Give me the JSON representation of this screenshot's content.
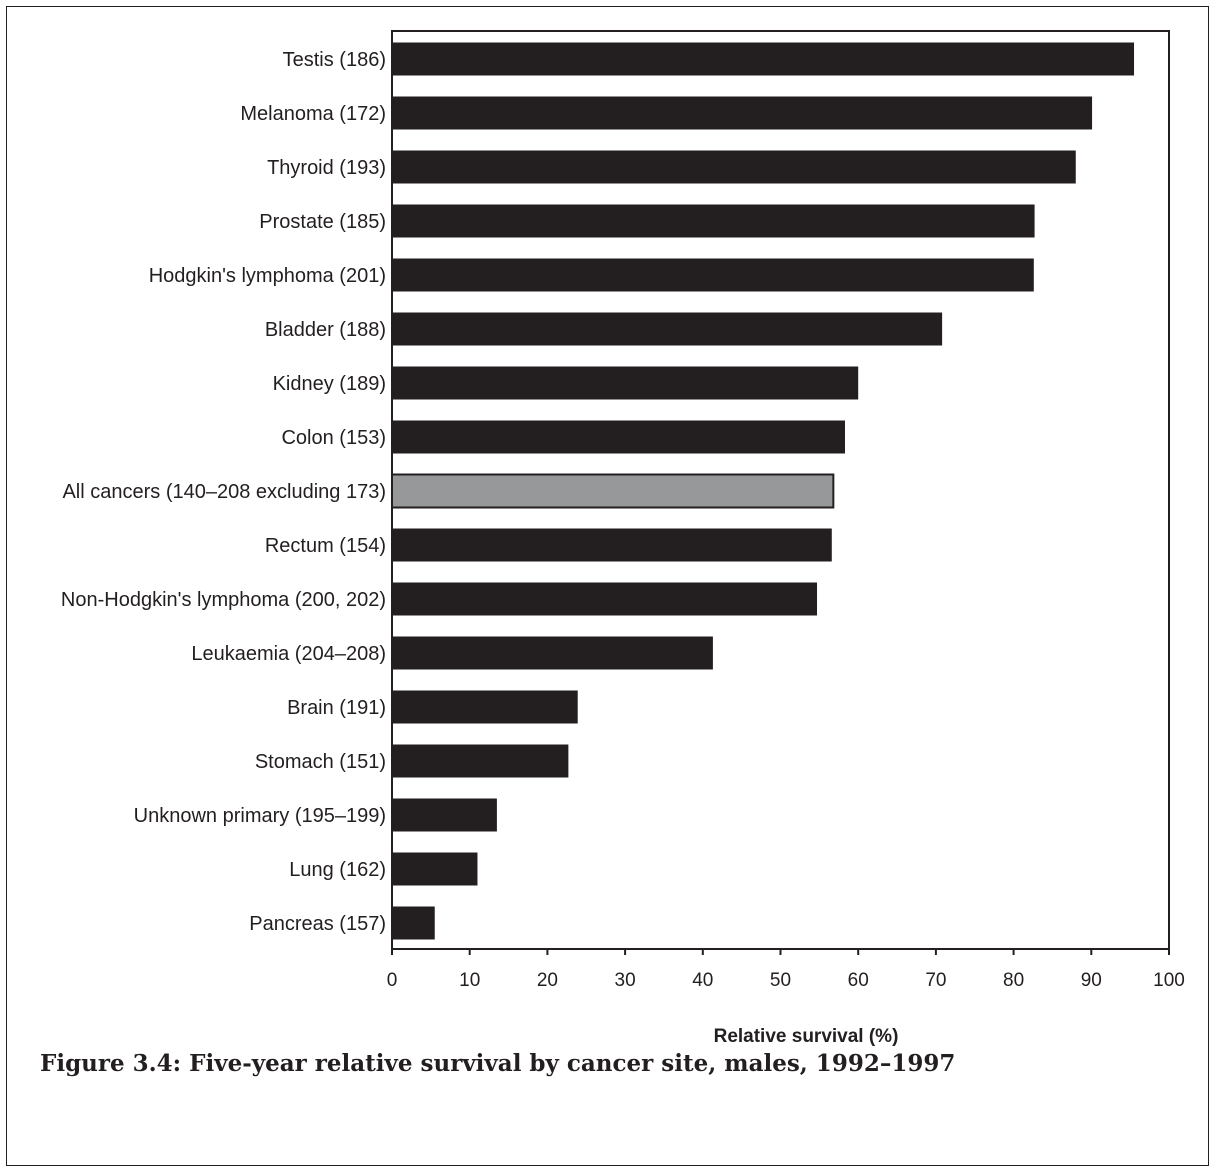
{
  "caption": "Figure 3.4: Five-year relative survival by cancer site, males, 1992–1997",
  "chart_data": {
    "type": "bar",
    "orientation": "horizontal",
    "categories": [
      "Testis (186)",
      "Melanoma (172)",
      "Thyroid (193)",
      "Prostate (185)",
      "Hodgkin's lymphoma (201)",
      "Bladder (188)",
      "Kidney (189)",
      "Colon (153)",
      "All cancers (140–208 excluding 173)",
      "Rectum (154)",
      "Non-Hodgkin's lymphoma (200, 202)",
      "Leukaemia (204–208)",
      "Brain (191)",
      "Stomach (151)",
      "Unknown primary (195–199)",
      "Lung (162)",
      "Pancreas (157)"
    ],
    "values": [
      95.5,
      90.1,
      88.0,
      82.7,
      82.6,
      70.8,
      60.0,
      58.3,
      56.8,
      56.6,
      54.7,
      41.3,
      23.9,
      22.7,
      13.5,
      11.0,
      5.5
    ],
    "highlight_index": 8,
    "bar_color": "#231f20",
    "highlight_color": "#97989a",
    "title": "",
    "xlabel": "Relative survival (%)",
    "ylabel": "",
    "xlim": [
      0,
      100
    ],
    "xticks": [
      "0",
      "10",
      "20",
      "30",
      "40",
      "50",
      "60",
      "70",
      "80",
      "90",
      "100"
    ],
    "grid": false
  }
}
